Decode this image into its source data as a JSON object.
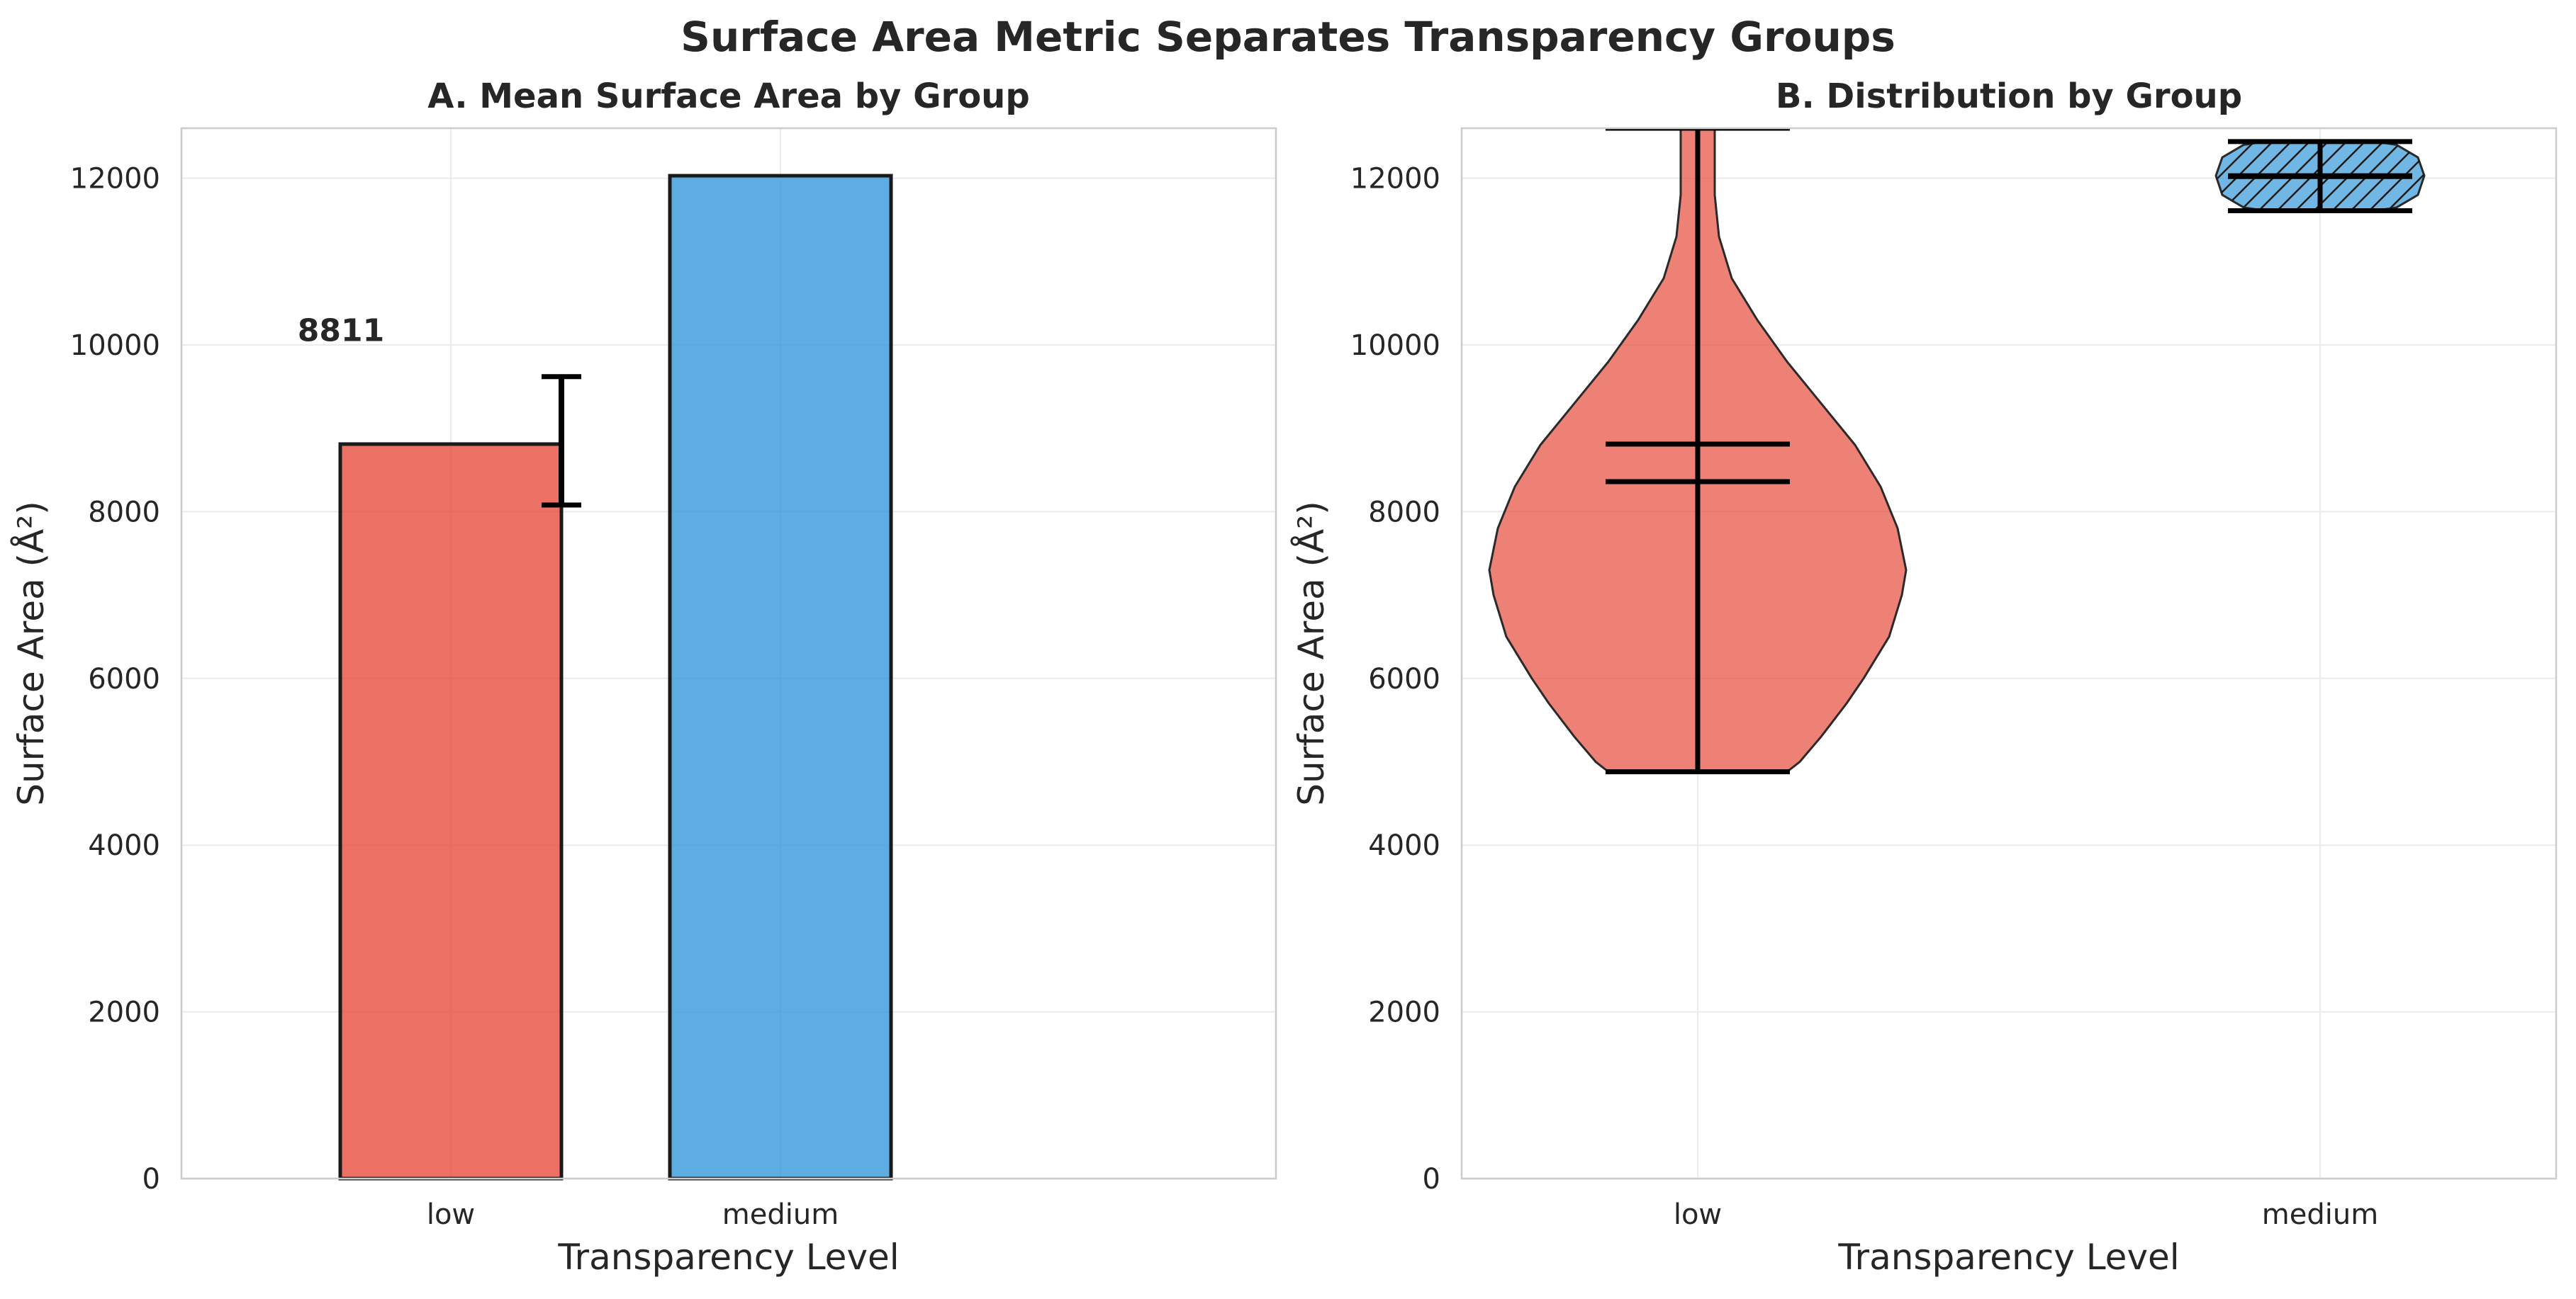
{
  "figure": {
    "title": "Surface Area Metric Separates Transparency Groups"
  },
  "colors": {
    "low": "#e74c3c",
    "medium": "#3498db",
    "edge": "#1a1a1a",
    "grid": "#ebebeb",
    "frame": "#cccccc"
  },
  "chart_data": [
    {
      "type": "bar",
      "title": "A. Mean Surface Area by Group",
      "xlabel": "Transparency Level",
      "ylabel": "Surface Area (Å²)",
      "categories": [
        "low",
        "medium"
      ],
      "values": [
        8811,
        12030
      ],
      "error": [
        {
          "low": 8080,
          "high": 9620
        },
        null
      ],
      "bar_labels": [
        "8811",
        ""
      ],
      "ylim": [
        0,
        12600
      ],
      "yticks": [
        0,
        2000,
        4000,
        6000,
        8000,
        10000,
        12000
      ],
      "grid": true
    },
    {
      "type": "violin",
      "title": "B. Distribution by Group",
      "xlabel": "Transparency Level",
      "ylabel": "Surface Area (Å²)",
      "categories": [
        "low",
        "medium"
      ],
      "groups": [
        {
          "name": "low",
          "min": 4880,
          "max": 12600,
          "mean": 8811,
          "median": 8360,
          "hatched": false,
          "density": [
            [
              4880,
              0.21
            ],
            [
              5000,
              0.24
            ],
            [
              5300,
              0.29
            ],
            [
              5700,
              0.35
            ],
            [
              6000,
              0.39
            ],
            [
              6500,
              0.45
            ],
            [
              7000,
              0.48
            ],
            [
              7300,
              0.49
            ],
            [
              7800,
              0.47
            ],
            [
              8300,
              0.43
            ],
            [
              8800,
              0.37
            ],
            [
              9300,
              0.29
            ],
            [
              9800,
              0.21
            ],
            [
              10300,
              0.14
            ],
            [
              10800,
              0.08
            ],
            [
              11300,
              0.05
            ],
            [
              11800,
              0.04
            ],
            [
              12200,
              0.04
            ],
            [
              12600,
              0.04
            ]
          ]
        },
        {
          "name": "medium",
          "min": 11610,
          "max": 12440,
          "mean": 12020,
          "median": 12030,
          "hatched": true,
          "density": [
            [
              11610,
              0.13
            ],
            [
              11650,
              0.18
            ],
            [
              11800,
              0.23
            ],
            [
              12030,
              0.245
            ],
            [
              12250,
              0.23
            ],
            [
              12400,
              0.18
            ],
            [
              12440,
              0.13
            ]
          ]
        }
      ],
      "ylim": [
        0,
        12600
      ],
      "yticks": [
        0,
        2000,
        4000,
        6000,
        8000,
        10000,
        12000
      ],
      "grid": true
    }
  ]
}
